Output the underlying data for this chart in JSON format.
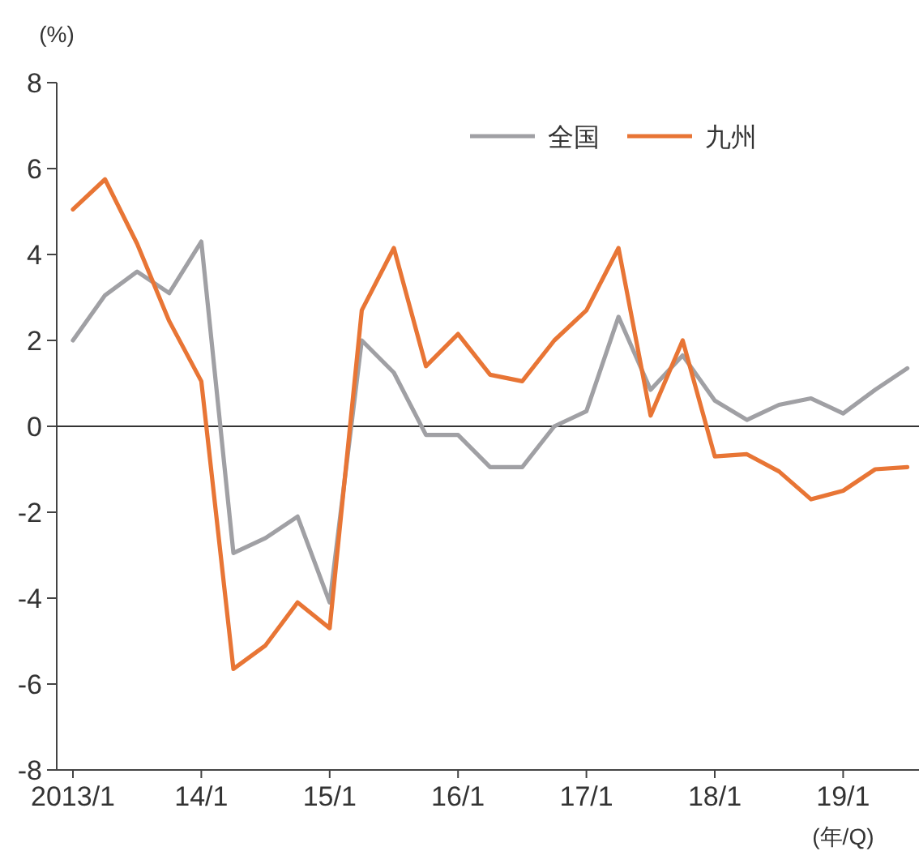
{
  "chart_data": {
    "type": "line",
    "ylabel": "(%)",
    "xlabel": "(年/Q)",
    "categories": [
      "2013/1",
      null,
      null,
      null,
      "14/1",
      null,
      null,
      null,
      "15/1",
      null,
      null,
      null,
      "16/1",
      null,
      null,
      null,
      "17/1",
      null,
      null,
      null,
      "18/1",
      null,
      null,
      null,
      "19/1",
      null,
      null
    ],
    "series": [
      {
        "name": "全国",
        "color": "#a0a0a4",
        "values": [
          2.0,
          3.05,
          3.6,
          3.1,
          4.3,
          -2.95,
          -2.6,
          -2.1,
          -4.1,
          2.0,
          1.25,
          -0.2,
          -0.2,
          -0.95,
          -0.95,
          0.0,
          0.35,
          2.55,
          0.85,
          1.65,
          0.6,
          0.15,
          0.5,
          0.65,
          0.3,
          0.85,
          1.35
        ]
      },
      {
        "name": "九州",
        "color": "#e87535",
        "values": [
          5.05,
          5.75,
          4.25,
          2.45,
          1.05,
          -5.65,
          -5.1,
          -4.1,
          -4.7,
          2.7,
          4.15,
          1.4,
          2.15,
          1.2,
          1.05,
          2.0,
          2.7,
          4.15,
          0.25,
          2.0,
          -0.7,
          -0.65,
          -1.05,
          -1.7,
          -1.5,
          -1.0,
          -0.95
        ]
      }
    ],
    "ylim": [
      -8,
      8
    ],
    "yticks": [
      -8,
      -6,
      -4,
      -2,
      0,
      2,
      4,
      6,
      8
    ],
    "ref_lines": [
      {
        "axis": "y",
        "value": 0,
        "color": "#333333"
      }
    ],
    "grid": false,
    "legend": "top right",
    "marker": "none",
    "line_style": "solid"
  }
}
